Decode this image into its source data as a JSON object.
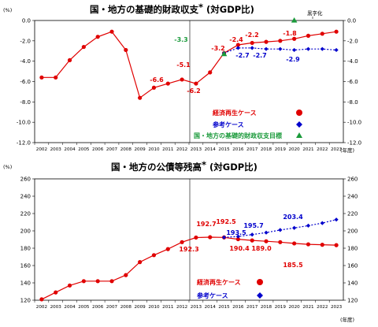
{
  "charts": [
    {
      "title": "国・地方の基礎的財政収支",
      "title_mark": "*",
      "title_suffix": "(対GDP比)",
      "unit_left": "(%)",
      "unit_x": "(年度)",
      "legend": [
        {
          "label": "経済再生ケース",
          "color": "#e00000",
          "marker": "circle"
        },
        {
          "label": "参考ケース",
          "color": "#0000cc",
          "marker": "diamond"
        },
        {
          "label": "国・地方の基礎的財政収支目標",
          "color": "#1a9a3a",
          "marker": "triangle"
        }
      ],
      "annotation": "黒字化",
      "value_labels": [
        {
          "text": "-6.6",
          "color": "#e00000"
        },
        {
          "text": "-6.2",
          "color": "#e00000"
        },
        {
          "text": "-5.1",
          "color": "#e00000"
        },
        {
          "text": "-3.2",
          "color": "#e00000"
        },
        {
          "text": "-2.4",
          "color": "#e00000"
        },
        {
          "text": "-2.2",
          "color": "#e00000"
        },
        {
          "text": "-1.8",
          "color": "#e00000"
        },
        {
          "text": "-3.3",
          "color": "#1a9a3a"
        },
        {
          "text": "-2.7",
          "color": "#0000cc"
        },
        {
          "text": "-2.7",
          "color": "#0000cc"
        },
        {
          "text": "-2.9",
          "color": "#0000cc"
        }
      ]
    },
    {
      "title": "国・地方の公債等残高",
      "title_mark": "*",
      "title_suffix": "(対GDP比)",
      "unit_left": "(%)",
      "unit_x": "(年度)",
      "legend": [
        {
          "label": "経済再生ケース",
          "color": "#e00000",
          "marker": "circle"
        },
        {
          "label": "参考ケース",
          "color": "#0000cc",
          "marker": "diamond"
        }
      ],
      "value_labels": [
        {
          "text": "192.3",
          "color": "#e00000"
        },
        {
          "text": "192.7",
          "color": "#e00000"
        },
        {
          "text": "192.5",
          "color": "#e00000"
        },
        {
          "text": "190.4",
          "color": "#e00000"
        },
        {
          "text": "189.0",
          "color": "#e00000"
        },
        {
          "text": "185.5",
          "color": "#e00000"
        },
        {
          "text": "193.5",
          "color": "#0000cc"
        },
        {
          "text": "195.7",
          "color": "#0000cc"
        },
        {
          "text": "203.4",
          "color": "#0000cc"
        }
      ]
    }
  ],
  "chart_data": [
    {
      "type": "line",
      "title": "国・地方の基礎的財政収支*(対GDP比)",
      "xlabel": "(年度)",
      "ylabel": "(%)",
      "categories": [
        "2002",
        "2003",
        "2004",
        "2005",
        "2006",
        "2007",
        "2008",
        "2009",
        "2010",
        "2011",
        "2012",
        "2013",
        "2014",
        "2015",
        "2016",
        "2017",
        "2018",
        "2019",
        "2020",
        "2021",
        "2022",
        "2023"
      ],
      "ylim": [
        -12,
        0
      ],
      "yticks": [
        0,
        -2,
        -4,
        -6,
        -8,
        -10,
        -12
      ],
      "series": [
        {
          "name": "経済再生ケース",
          "color": "#e00000",
          "marker": "circle",
          "dash": false,
          "values": [
            -5.6,
            -5.6,
            -3.9,
            -2.6,
            -1.6,
            -1.1,
            -2.9,
            -7.6,
            -6.6,
            -6.2,
            -5.8,
            -6.2,
            -5.1,
            -3.2,
            -2.4,
            -2.2,
            -2.1,
            -2.0,
            -1.8,
            -1.5,
            -1.3,
            -1.1
          ]
        },
        {
          "name": "参考ケース",
          "color": "#0000cc",
          "marker": "diamond",
          "dash": true,
          "values": [
            null,
            null,
            null,
            null,
            null,
            null,
            null,
            null,
            null,
            null,
            null,
            null,
            null,
            -3.2,
            -2.7,
            -2.7,
            -2.8,
            -2.8,
            -2.9,
            -2.8,
            -2.8,
            -2.9
          ]
        },
        {
          "name": "国・地方の基礎的財政収支目標",
          "color": "#1a9a3a",
          "marker": "triangle",
          "dash": true,
          "values": [
            null,
            null,
            null,
            null,
            null,
            null,
            null,
            null,
            null,
            null,
            null,
            null,
            null,
            -3.3,
            null,
            null,
            null,
            null,
            0.0,
            null,
            null,
            null
          ]
        }
      ]
    },
    {
      "type": "line",
      "title": "国・地方の公債等残高*(対GDP比)",
      "xlabel": "(年度)",
      "ylabel": "(%)",
      "categories": [
        "2002",
        "2003",
        "2004",
        "2005",
        "2006",
        "2007",
        "2008",
        "2009",
        "2010",
        "2011",
        "2012",
        "2013",
        "2014",
        "2015",
        "2016",
        "2017",
        "2018",
        "2019",
        "2020",
        "2021",
        "2022",
        "2023"
      ],
      "ylim": [
        120,
        260
      ],
      "yticks": [
        260,
        240,
        220,
        200,
        180,
        160,
        140,
        120
      ],
      "series": [
        {
          "name": "経済再生ケース",
          "color": "#e00000",
          "marker": "circle",
          "dash": false,
          "values": [
            121,
            129,
            137,
            142,
            142,
            142,
            149,
            164,
            172,
            179,
            187,
            192.3,
            192.7,
            192.5,
            190.4,
            189.0,
            188,
            187,
            185.5,
            184.5,
            184,
            183.5
          ]
        },
        {
          "name": "参考ケース",
          "color": "#0000cc",
          "marker": "diamond",
          "dash": true,
          "values": [
            null,
            null,
            null,
            null,
            null,
            null,
            null,
            null,
            null,
            null,
            null,
            null,
            null,
            192.5,
            193.5,
            195.7,
            198,
            201,
            203.4,
            206,
            209,
            213
          ]
        }
      ]
    }
  ]
}
